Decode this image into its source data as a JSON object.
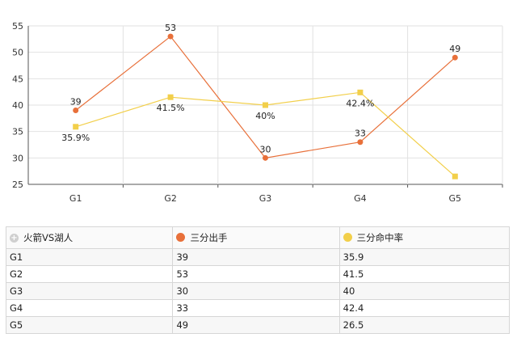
{
  "chart_data": {
    "type": "line",
    "categories": [
      "G1",
      "G2",
      "G3",
      "G4",
      "G5"
    ],
    "ylim": [
      25,
      55
    ],
    "yticks": [
      25,
      30,
      35,
      40,
      45,
      50,
      55
    ],
    "grid": true,
    "series": [
      {
        "name": "三分出手",
        "values": [
          39,
          53,
          30,
          33,
          49
        ],
        "labels": [
          "39",
          "53",
          "30",
          "33",
          "49"
        ],
        "color": "#e8703a",
        "marker": "circle"
      },
      {
        "name": "三分命中率",
        "values": [
          35.9,
          41.5,
          40,
          42.4,
          26.5
        ],
        "labels": [
          "35.9%",
          "41.5%",
          "40%",
          "42.4%",
          ""
        ],
        "color": "#f2cf4a",
        "marker": "square"
      }
    ]
  },
  "table": {
    "header": {
      "title": "火箭VS湖人",
      "col1": "三分出手",
      "col2": "三分命中率"
    },
    "rows": [
      {
        "game": "G1",
        "attempts": "39",
        "pct": "35.9"
      },
      {
        "game": "G2",
        "attempts": "53",
        "pct": "41.5"
      },
      {
        "game": "G3",
        "attempts": "30",
        "pct": "40"
      },
      {
        "game": "G4",
        "attempts": "33",
        "pct": "42.4"
      },
      {
        "game": "G5",
        "attempts": "49",
        "pct": "26.5"
      }
    ]
  }
}
